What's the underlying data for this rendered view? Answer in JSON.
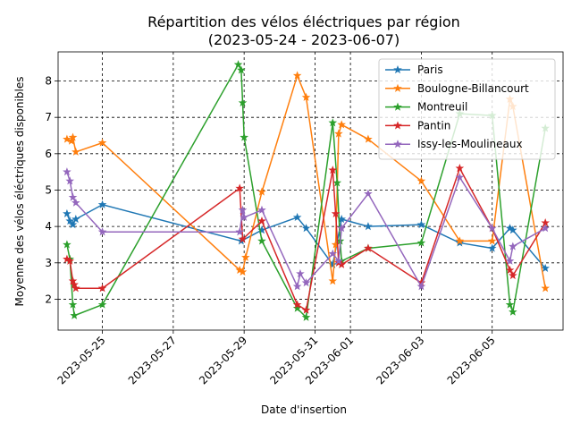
{
  "chart_data": {
    "type": "line",
    "title": "Répartition des vélos éléctriques par région",
    "subtitle": "(2023-05-24 - 2023-06-07)",
    "xlabel": "Date d'insertion",
    "ylabel": "Moyenne des vélos éléctriques disponibles",
    "x_range": [
      "2023-05-23T18:00",
      "2023-06-07T00:00"
    ],
    "ylim": [
      1.15,
      8.8
    ],
    "xtick_labels": [
      "2023-05-25",
      "2023-05-27",
      "2023-05-29",
      "2023-05-31",
      "2023-06-01",
      "2023-06-03",
      "2023-06-05"
    ],
    "ytick_labels": [
      "2",
      "3",
      "4",
      "5",
      "6",
      "7",
      "8"
    ],
    "grid": true,
    "legend_position": "upper right",
    "marker": "star",
    "series": [
      {
        "name": "Paris",
        "color": "#1f77b4",
        "points": [
          [
            "2023-05-24T00:00",
            4.35
          ],
          [
            "2023-05-24T02:00",
            4.15
          ],
          [
            "2023-05-24T04:00",
            4.05
          ],
          [
            "2023-05-24T06:00",
            4.2
          ],
          [
            "2023-05-25T00:00",
            4.6
          ],
          [
            "2023-05-28T22:00",
            3.6
          ],
          [
            "2023-05-29T12:00",
            3.9
          ],
          [
            "2023-05-30T12:00",
            4.25
          ],
          [
            "2023-05-30T18:00",
            3.95
          ],
          [
            "2023-05-31T12:00",
            2.95
          ],
          [
            "2023-05-31T18:00",
            4.2
          ],
          [
            "2023-06-01T12:00",
            4.0
          ],
          [
            "2023-06-03T00:00",
            4.05
          ],
          [
            "2023-06-04T02:00",
            3.55
          ],
          [
            "2023-06-05T00:00",
            3.4
          ],
          [
            "2023-06-05T12:00",
            3.95
          ],
          [
            "2023-06-05T14:00",
            3.9
          ],
          [
            "2023-06-06T12:00",
            2.85
          ]
        ]
      },
      {
        "name": "Boulogne-Billancourt",
        "color": "#ff7f0e",
        "points": [
          [
            "2023-05-24T00:00",
            6.4
          ],
          [
            "2023-05-24T03:00",
            6.35
          ],
          [
            "2023-05-24T04:00",
            6.45
          ],
          [
            "2023-05-24T06:00",
            6.05
          ],
          [
            "2023-05-25T00:00",
            6.3
          ],
          [
            "2023-05-28T21:00",
            2.8
          ],
          [
            "2023-05-28T23:00",
            2.75
          ],
          [
            "2023-05-29T01:00",
            3.15
          ],
          [
            "2023-05-29T12:00",
            4.95
          ],
          [
            "2023-05-30T12:00",
            8.15
          ],
          [
            "2023-05-30T18:00",
            7.55
          ],
          [
            "2023-05-31T12:00",
            2.5
          ],
          [
            "2023-05-31T14:00",
            3.5
          ],
          [
            "2023-05-31T16:00",
            6.55
          ],
          [
            "2023-05-31T18:00",
            6.8
          ],
          [
            "2023-06-01T12:00",
            6.4
          ],
          [
            "2023-06-03T00:00",
            5.25
          ],
          [
            "2023-06-04T02:00",
            3.6
          ],
          [
            "2023-06-05T00:00",
            3.6
          ],
          [
            "2023-06-05T12:00",
            7.5
          ],
          [
            "2023-06-05T14:00",
            7.3
          ],
          [
            "2023-06-06T12:00",
            2.3
          ]
        ]
      },
      {
        "name": "Montreuil",
        "color": "#2ca02c",
        "points": [
          [
            "2023-05-24T00:00",
            3.5
          ],
          [
            "2023-05-24T02:00",
            3.1
          ],
          [
            "2023-05-24T04:00",
            1.85
          ],
          [
            "2023-05-24T05:00",
            1.55
          ],
          [
            "2023-05-25T00:00",
            1.85
          ],
          [
            "2023-05-28T20:00",
            8.45
          ],
          [
            "2023-05-28T22:00",
            8.3
          ],
          [
            "2023-05-28T23:00",
            7.4
          ],
          [
            "2023-05-29T00:00",
            6.45
          ],
          [
            "2023-05-29T12:00",
            3.6
          ],
          [
            "2023-05-30T12:00",
            1.75
          ],
          [
            "2023-05-30T18:00",
            1.5
          ],
          [
            "2023-05-31T12:00",
            6.85
          ],
          [
            "2023-05-31T15:00",
            5.2
          ],
          [
            "2023-05-31T17:00",
            3.6
          ],
          [
            "2023-05-31T18:00",
            3.05
          ],
          [
            "2023-06-01T12:00",
            3.4
          ],
          [
            "2023-06-03T00:00",
            3.55
          ],
          [
            "2023-06-04T02:00",
            7.1
          ],
          [
            "2023-06-05T00:00",
            7.05
          ],
          [
            "2023-06-05T12:00",
            1.85
          ],
          [
            "2023-06-05T14:00",
            1.65
          ],
          [
            "2023-06-06T12:00",
            6.7
          ]
        ]
      },
      {
        "name": "Pantin",
        "color": "#d62728",
        "points": [
          [
            "2023-05-24T00:00",
            3.1
          ],
          [
            "2023-05-24T02:00",
            3.05
          ],
          [
            "2023-05-24T04:00",
            2.5
          ],
          [
            "2023-05-24T05:00",
            2.4
          ],
          [
            "2023-05-24T06:00",
            2.3
          ],
          [
            "2023-05-25T00:00",
            2.3
          ],
          [
            "2023-05-28T21:00",
            5.05
          ],
          [
            "2023-05-28T23:00",
            3.65
          ],
          [
            "2023-05-29T12:00",
            4.15
          ],
          [
            "2023-05-30T12:00",
            1.85
          ],
          [
            "2023-05-30T18:00",
            1.7
          ],
          [
            "2023-05-31T12:00",
            5.55
          ],
          [
            "2023-05-31T14:00",
            4.35
          ],
          [
            "2023-05-31T16:00",
            3.0
          ],
          [
            "2023-05-31T18:00",
            2.95
          ],
          [
            "2023-06-01T12:00",
            3.4
          ],
          [
            "2023-06-03T00:00",
            2.45
          ],
          [
            "2023-06-04T02:00",
            5.6
          ],
          [
            "2023-06-05T00:00",
            3.95
          ],
          [
            "2023-06-05T12:00",
            2.8
          ],
          [
            "2023-06-05T14:00",
            2.65
          ],
          [
            "2023-06-06T12:00",
            4.1
          ]
        ]
      },
      {
        "name": "Issy-les-Moulineaux",
        "color": "#9467bd",
        "points": [
          [
            "2023-05-24T00:00",
            5.5
          ],
          [
            "2023-05-24T02:00",
            5.25
          ],
          [
            "2023-05-24T04:00",
            4.8
          ],
          [
            "2023-05-24T06:00",
            4.65
          ],
          [
            "2023-05-25T00:00",
            3.85
          ],
          [
            "2023-05-28T21:00",
            3.85
          ],
          [
            "2023-05-28T23:00",
            4.45
          ],
          [
            "2023-05-29T00:00",
            4.25
          ],
          [
            "2023-05-29T12:00",
            4.45
          ],
          [
            "2023-05-30T12:00",
            2.35
          ],
          [
            "2023-05-30T14:00",
            2.7
          ],
          [
            "2023-05-30T18:00",
            2.45
          ],
          [
            "2023-05-31T12:00",
            3.25
          ],
          [
            "2023-05-31T16:00",
            3.05
          ],
          [
            "2023-05-31T18:00",
            3.95
          ],
          [
            "2023-06-01T12:00",
            4.9
          ],
          [
            "2023-06-03T00:00",
            2.35
          ],
          [
            "2023-06-04T02:00",
            5.35
          ],
          [
            "2023-06-05T00:00",
            3.95
          ],
          [
            "2023-06-05T12:00",
            3.05
          ],
          [
            "2023-06-05T14:00",
            3.45
          ],
          [
            "2023-06-06T12:00",
            3.95
          ]
        ]
      }
    ]
  }
}
